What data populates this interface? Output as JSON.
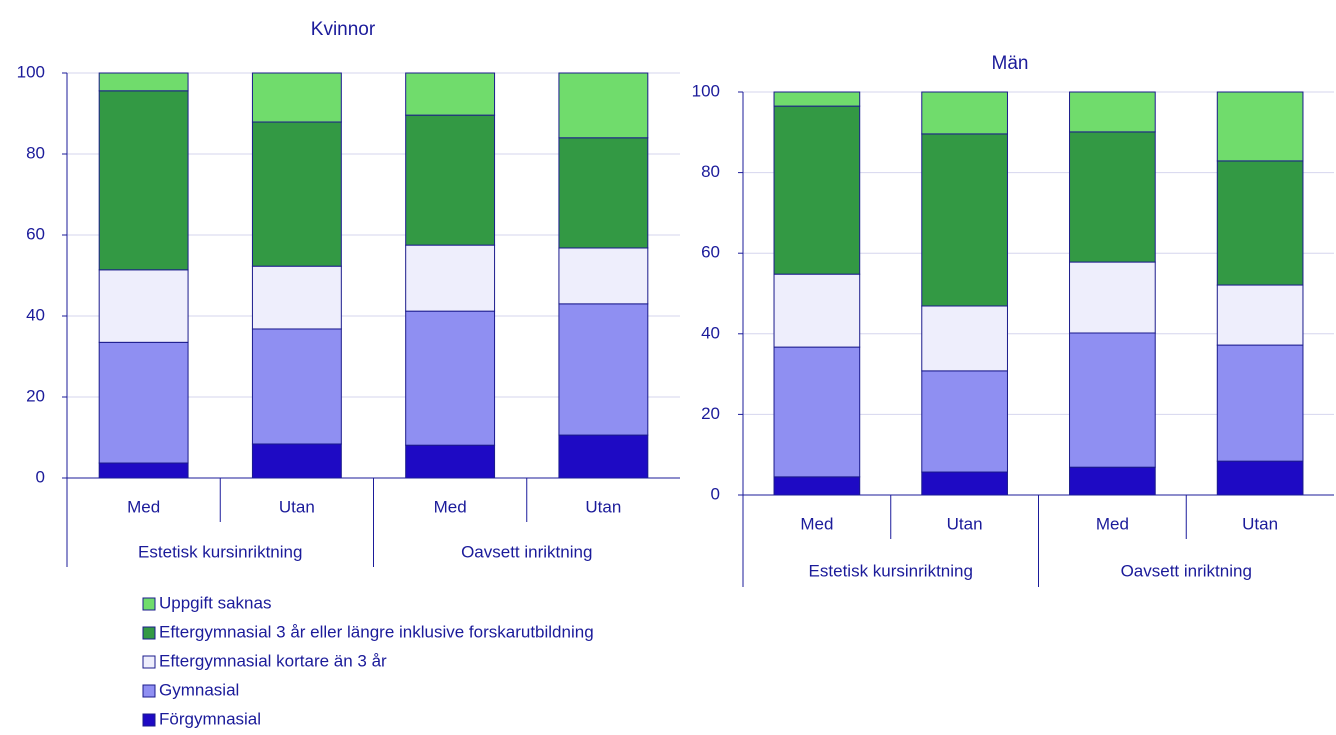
{
  "chart_data": [
    {
      "type": "stacked_bar",
      "title": "Kvinnor",
      "categories": [
        "Med",
        "Utan",
        "Med",
        "Utan"
      ],
      "groups": [
        "Estetisk kursinriktning",
        "Oavsett inriktning"
      ],
      "ylim": [
        0,
        100
      ],
      "yticks": [
        0,
        20,
        40,
        60,
        80,
        100
      ],
      "grid": true,
      "series": [
        {
          "name": "Förgymnasial",
          "color": "#1e0ac4",
          "values": [
            3.7,
            8.4,
            8.1,
            10.6
          ]
        },
        {
          "name": "Gymnasial",
          "color": "#8f8ff2",
          "values": [
            29.8,
            28.4,
            33.1,
            32.4
          ]
        },
        {
          "name": "Eftergymnasial kortare än 3 år",
          "color": "#eeeefc",
          "values": [
            17.9,
            15.5,
            16.3,
            13.8
          ]
        },
        {
          "name": "Eftergymnasial 3 år eller längre inklusive forskarutbildning",
          "color": "#339944",
          "values": [
            44.2,
            35.6,
            32.1,
            27.2
          ]
        },
        {
          "name": "Uppgift saknas",
          "color": "#70dc6c",
          "values": [
            4.4,
            12.1,
            10.4,
            16.0
          ]
        }
      ]
    },
    {
      "type": "stacked_bar",
      "title": "Män",
      "categories": [
        "Med",
        "Utan",
        "Med",
        "Utan"
      ],
      "groups": [
        "Estetisk kursinriktning",
        "Oavsett inriktning"
      ],
      "ylim": [
        0,
        100
      ],
      "yticks": [
        0,
        20,
        40,
        60,
        80,
        100
      ],
      "grid": true,
      "series": [
        {
          "color": "#1e0ac4",
          "values": [
            4.5,
            5.7,
            6.9,
            8.4
          ]
        },
        {
          "color": "#8f8ff2",
          "values": [
            32.2,
            25.1,
            33.3,
            28.8
          ]
        },
        {
          "color": "#eeeefc",
          "values": [
            18.1,
            16.1,
            17.6,
            14.9
          ]
        },
        {
          "color": "#339944",
          "values": [
            41.7,
            42.7,
            32.3,
            30.8
          ]
        },
        {
          "color": "#70dc6c",
          "values": [
            3.5,
            10.4,
            9.9,
            17.1
          ]
        }
      ]
    }
  ]
}
